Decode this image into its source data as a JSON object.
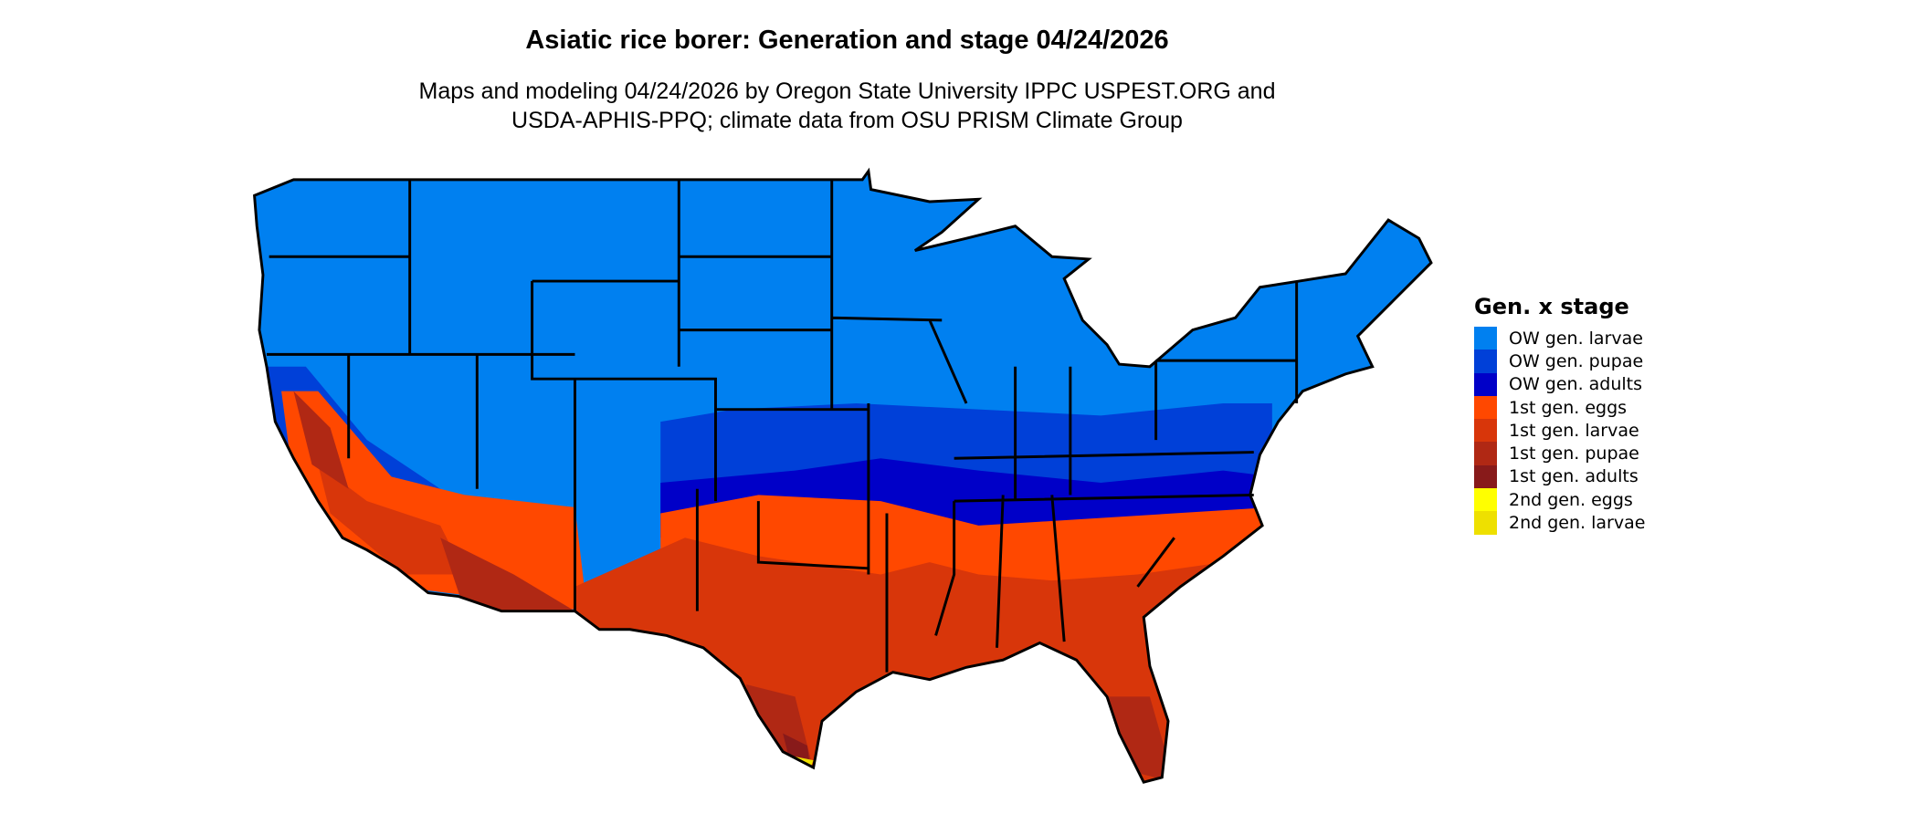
{
  "title": "Asiatic rice borer: Generation and stage 04/24/2026",
  "subtitle_lines": [
    "Maps and modeling 04/24/2026 by Oregon State University IPPC USPEST.ORG and",
    "USDA-APHIS-PPQ; climate data from OSU PRISM Climate Group"
  ],
  "legend": {
    "title": "Gen. x stage",
    "items": [
      {
        "label": "OW gen. larvae",
        "color": "#0080F0"
      },
      {
        "label": "OW gen. pupae",
        "color": "#0040D8"
      },
      {
        "label": "OW gen. adults",
        "color": "#0000C8"
      },
      {
        "label": "1st gen. eggs",
        "color": "#FF4800"
      },
      {
        "label": "1st gen. larvae",
        "color": "#D8360A"
      },
      {
        "label": "1st gen. pupae",
        "color": "#B02814"
      },
      {
        "label": "1st gen. adults",
        "color": "#881A1A"
      },
      {
        "label": "2nd gen. eggs",
        "color": "#FFFF00"
      },
      {
        "label": "2nd gen. larvae",
        "color": "#EEE000"
      }
    ]
  }
}
